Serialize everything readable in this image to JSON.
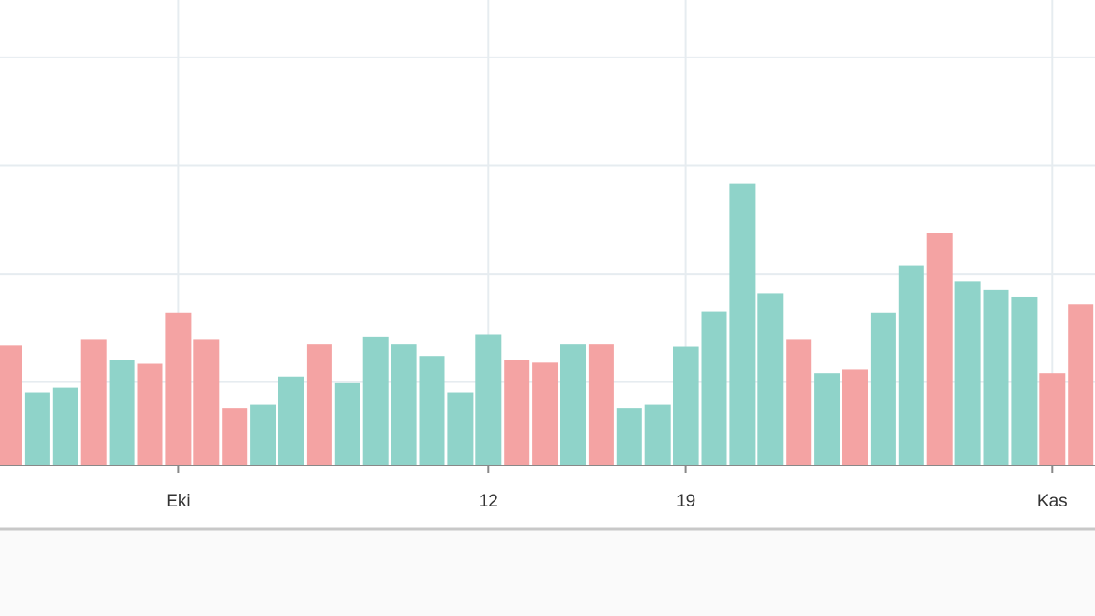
{
  "chart_data": {
    "type": "bar",
    "categories": [
      null,
      null,
      null,
      null,
      null,
      null,
      "Eki",
      null,
      null,
      null,
      null,
      null,
      null,
      null,
      null,
      null,
      null,
      "12",
      null,
      null,
      null,
      null,
      null,
      null,
      "19",
      null,
      null,
      null,
      null,
      null,
      null,
      null,
      null,
      null,
      null,
      null,
      null,
      "Kas",
      null
    ],
    "values": [
      111,
      67,
      72,
      116,
      97,
      94,
      141,
      116,
      53,
      56,
      82,
      112,
      76,
      119,
      112,
      101,
      67,
      121,
      97,
      95,
      112,
      112,
      53,
      56,
      110,
      142,
      260,
      159,
      116,
      85,
      89,
      141,
      185,
      215,
      170,
      162,
      156,
      85,
      149
    ],
    "colors": [
      "#f4a3a3",
      "#8fd3c9",
      "#8fd3c9",
      "#f4a3a3",
      "#8fd3c9",
      "#f4a3a3",
      "#f4a3a3",
      "#f4a3a3",
      "#f4a3a3",
      "#8fd3c9",
      "#8fd3c9",
      "#f4a3a3",
      "#8fd3c9",
      "#8fd3c9",
      "#8fd3c9",
      "#8fd3c9",
      "#8fd3c9",
      "#8fd3c9",
      "#f4a3a3",
      "#f4a3a3",
      "#8fd3c9",
      "#f4a3a3",
      "#8fd3c9",
      "#8fd3c9",
      "#8fd3c9",
      "#8fd3c9",
      "#8fd3c9",
      "#8fd3c9",
      "#f4a3a3",
      "#8fd3c9",
      "#f4a3a3",
      "#8fd3c9",
      "#8fd3c9",
      "#f4a3a3",
      "#8fd3c9",
      "#8fd3c9",
      "#8fd3c9",
      "#f4a3a3",
      "#f4a3a3"
    ],
    "ylim": [
      0,
      430
    ],
    "yticks": [
      77,
      177,
      277,
      377
    ],
    "grid": true
  }
}
